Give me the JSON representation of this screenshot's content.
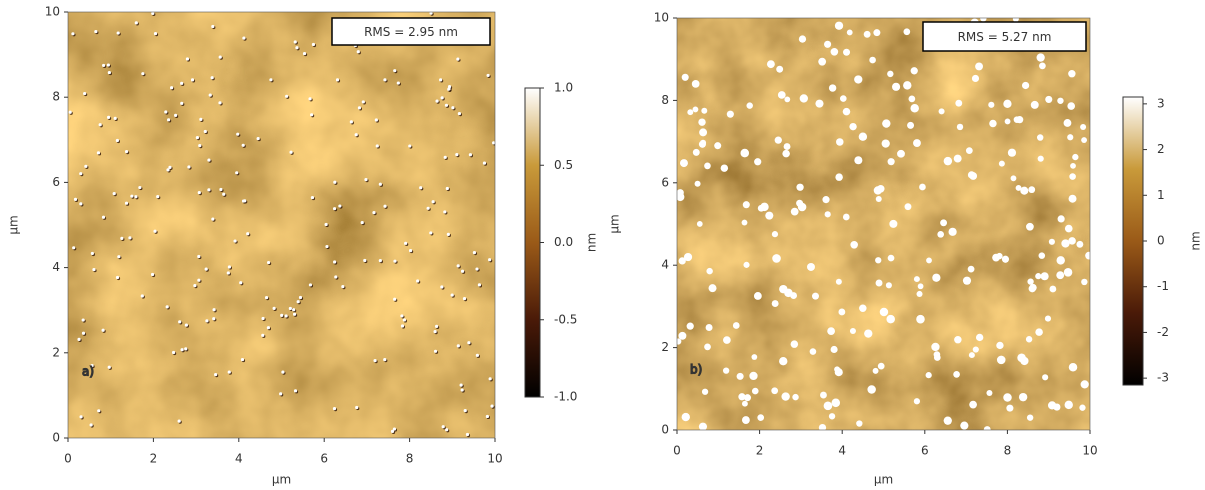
{
  "chart_data": [
    {
      "type": "image",
      "panel_label": "a)",
      "annotation": "RMS = 2.95 nm",
      "xlabel": "µm",
      "ylabel": "µm",
      "xlim": [
        0,
        10
      ],
      "ylim": [
        0,
        10
      ],
      "xticks": [
        0,
        2,
        4,
        6,
        8,
        10
      ],
      "yticks": [
        0,
        2,
        4,
        6,
        8,
        10
      ],
      "colorbar": {
        "label": "nm",
        "lim": [
          -1,
          1
        ],
        "ticks": [
          {
            "value": 1,
            "label": "1.0"
          },
          0.5,
          {
            "value": 0,
            "label": "0.0"
          },
          -0.5,
          {
            "value": -1,
            "label": "-1.0"
          }
        ]
      }
    },
    {
      "type": "image",
      "panel_label": "b)",
      "annotation": "RMS = 5.27 nm",
      "xlabel": "µm",
      "ylabel": "µm",
      "xlim": [
        0,
        10
      ],
      "ylim": [
        0,
        10
      ],
      "xticks": [
        0,
        2,
        4,
        6,
        8,
        10
      ],
      "yticks": [
        0,
        2,
        4,
        6,
        8,
        10
      ],
      "colorbar": {
        "label": "nm",
        "lim": [
          -3.15,
          3.15
        ],
        "ticks": [
          3,
          2,
          1,
          0,
          -1,
          -2,
          -3
        ]
      }
    }
  ]
}
